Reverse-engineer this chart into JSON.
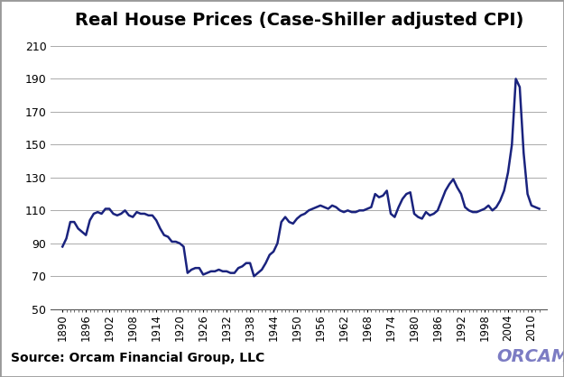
{
  "title": "Real House Prices (Case-Shiller adjusted CPI)",
  "title_fontsize": 14,
  "line_color": "#1a237e",
  "line_width": 1.8,
  "background_color": "#ffffff",
  "plot_bg_color": "#ffffff",
  "footer_bg_color": "#e8e8e8",
  "ylim": [
    50,
    215
  ],
  "yticks": [
    50,
    70,
    90,
    110,
    130,
    150,
    170,
    190,
    210
  ],
  "xtick_years": [
    1890,
    1896,
    1902,
    1908,
    1914,
    1920,
    1926,
    1932,
    1938,
    1944,
    1950,
    1956,
    1962,
    1968,
    1974,
    1980,
    1986,
    1992,
    1998,
    2004,
    2010
  ],
  "source_text": "Source: Orcam Financial Group, LLC",
  "years": [
    1890,
    1891,
    1892,
    1893,
    1894,
    1895,
    1896,
    1897,
    1898,
    1899,
    1900,
    1901,
    1902,
    1903,
    1904,
    1905,
    1906,
    1907,
    1908,
    1909,
    1910,
    1911,
    1912,
    1913,
    1914,
    1915,
    1916,
    1917,
    1918,
    1919,
    1920,
    1921,
    1922,
    1923,
    1924,
    1925,
    1926,
    1927,
    1928,
    1929,
    1930,
    1931,
    1932,
    1933,
    1934,
    1935,
    1936,
    1937,
    1938,
    1939,
    1940,
    1941,
    1942,
    1943,
    1944,
    1945,
    1946,
    1947,
    1948,
    1949,
    1950,
    1951,
    1952,
    1953,
    1954,
    1955,
    1956,
    1957,
    1958,
    1959,
    1960,
    1961,
    1962,
    1963,
    1964,
    1965,
    1966,
    1967,
    1968,
    1969,
    1970,
    1971,
    1972,
    1973,
    1974,
    1975,
    1976,
    1977,
    1978,
    1979,
    1980,
    1981,
    1982,
    1983,
    1984,
    1985,
    1986,
    1987,
    1988,
    1989,
    1990,
    1991,
    1992,
    1993,
    1994,
    1995,
    1996,
    1997,
    1998,
    1999,
    2000,
    2001,
    2002,
    2003,
    2004,
    2005,
    2006,
    2007,
    2008,
    2009,
    2010,
    2011,
    2012
  ],
  "values": [
    88,
    93,
    103,
    103,
    99,
    97,
    95,
    104,
    108,
    109,
    108,
    111,
    111,
    108,
    107,
    108,
    110,
    107,
    106,
    109,
    108,
    108,
    107,
    107,
    104,
    99,
    95,
    94,
    91,
    91,
    90,
    88,
    72,
    74,
    75,
    75,
    71,
    72,
    73,
    73,
    74,
    73,
    73,
    72,
    72,
    75,
    76,
    78,
    78,
    70,
    72,
    74,
    78,
    83,
    85,
    90,
    103,
    106,
    103,
    102,
    105,
    107,
    108,
    110,
    111,
    112,
    113,
    112,
    111,
    113,
    112,
    110,
    109,
    110,
    109,
    109,
    110,
    110,
    111,
    112,
    120,
    118,
    119,
    122,
    108,
    106,
    112,
    117,
    120,
    121,
    108,
    106,
    105,
    109,
    107,
    108,
    110,
    116,
    122,
    126,
    129,
    124,
    120,
    112,
    110,
    109,
    109,
    110,
    111,
    113,
    110,
    112,
    116,
    122,
    133,
    150,
    190,
    185,
    145,
    120,
    113,
    112,
    111
  ]
}
